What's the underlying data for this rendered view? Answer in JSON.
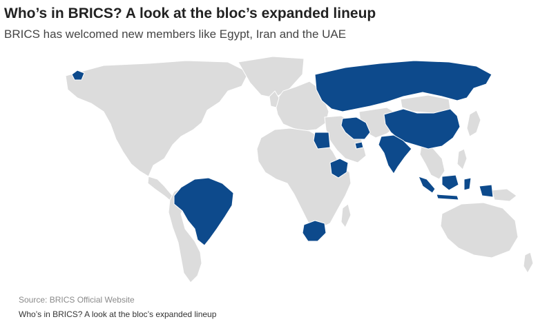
{
  "header": {
    "title": "Who’s in BRICS? A look at the bloc’s expanded lineup",
    "subtitle": "BRICS has welcomed new members like Egypt, Iran and the UAE"
  },
  "map": {
    "colors": {
      "member": "#0d4a8c",
      "non_member": "#dcdcdc",
      "border": "#ffffff"
    },
    "highlighted_countries": [
      "Brazil",
      "Russia",
      "India",
      "China",
      "South Africa",
      "Egypt",
      "Ethiopia",
      "Iran",
      "United Arab Emirates",
      "Indonesia"
    ]
  },
  "footer": {
    "source": "Source: BRICS Official Website",
    "caption": "Who’s in BRICS? A look at the bloc’s expanded lineup"
  }
}
